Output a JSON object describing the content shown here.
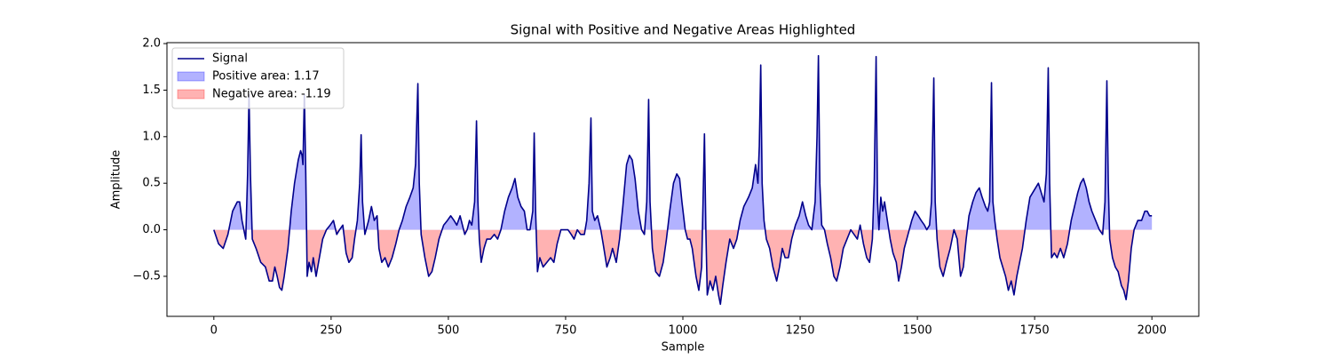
{
  "chart_data": {
    "type": "line",
    "title": "Signal with Positive and Negative Areas Highlighted",
    "xlabel": "Sample",
    "ylabel": "Amplitude",
    "x": [
      0,
      10,
      20,
      30,
      40,
      50,
      55,
      60,
      68,
      72,
      75,
      78,
      82,
      90,
      100,
      110,
      118,
      125,
      130,
      135,
      140,
      145,
      150,
      158,
      165,
      172,
      180,
      185,
      188,
      190,
      193,
      196,
      199,
      203,
      208,
      212,
      218,
      225,
      232,
      240,
      248,
      255,
      262,
      268,
      275,
      282,
      288,
      295,
      300,
      306,
      311,
      314,
      317,
      322,
      330,
      336,
      342,
      348,
      352,
      358,
      365,
      372,
      380,
      388,
      395,
      402,
      410,
      418,
      425,
      430,
      435,
      438,
      442,
      450,
      458,
      465,
      472,
      480,
      490,
      498,
      505,
      512,
      518,
      525,
      530,
      535,
      540,
      545,
      550,
      556,
      560,
      563,
      566,
      570,
      576,
      582,
      590,
      598,
      605,
      612,
      620,
      628,
      636,
      642,
      648,
      655,
      662,
      668,
      674,
      680,
      683,
      686,
      690,
      695,
      702,
      710,
      718,
      725,
      732,
      740,
      748,
      755,
      762,
      768,
      775,
      782,
      790,
      795,
      800,
      804,
      807,
      812,
      818,
      825,
      830,
      838,
      845,
      850,
      858,
      865,
      872,
      880,
      886,
      892,
      898,
      905,
      912,
      918,
      923,
      927,
      930,
      935,
      942,
      950,
      958,
      965,
      972,
      980,
      987,
      993,
      998,
      1005,
      1010,
      1015,
      1020,
      1028,
      1034,
      1040,
      1043,
      1046,
      1049,
      1052,
      1058,
      1064,
      1070,
      1076,
      1080,
      1085,
      1092,
      1100,
      1108,
      1115,
      1122,
      1130,
      1140,
      1148,
      1155,
      1160,
      1163,
      1166,
      1169,
      1173,
      1178,
      1185,
      1192,
      1200,
      1206,
      1212,
      1218,
      1225,
      1232,
      1240,
      1248,
      1255,
      1262,
      1268,
      1275,
      1282,
      1286,
      1289,
      1292,
      1296,
      1302,
      1308,
      1315,
      1322,
      1328,
      1335,
      1342,
      1350,
      1358,
      1365,
      1372,
      1378,
      1385,
      1392,
      1398,
      1404,
      1408,
      1412,
      1415,
      1418,
      1422,
      1426,
      1430,
      1436,
      1442,
      1448,
      1455,
      1460,
      1466,
      1472,
      1480,
      1488,
      1495,
      1502,
      1508,
      1515,
      1520,
      1526,
      1530,
      1535,
      1538,
      1542,
      1548,
      1555,
      1562,
      1570,
      1578,
      1585,
      1592,
      1598,
      1604,
      1610,
      1618,
      1625,
      1632,
      1638,
      1645,
      1650,
      1654,
      1658,
      1661,
      1665,
      1670,
      1676,
      1682,
      1688,
      1694,
      1700,
      1706,
      1712,
      1718,
      1724,
      1732,
      1740,
      1746,
      1752,
      1758,
      1764,
      1770,
      1775,
      1779,
      1782,
      1786,
      1792,
      1798,
      1805,
      1812,
      1820,
      1828,
      1835,
      1842,
      1848,
      1854,
      1860,
      1866,
      1872,
      1880,
      1888,
      1895,
      1900,
      1904,
      1907,
      1910,
      1916,
      1922,
      1928,
      1935,
      1940,
      1945,
      1950,
      1956,
      1962,
      1970,
      1978,
      1985,
      1990,
      1995,
      2000
    ],
    "series": [
      {
        "name": "Signal",
        "color": "#00008b",
        "values": [
          0,
          -0.15,
          -0.2,
          -0.05,
          0.2,
          0.3,
          0.3,
          0.1,
          -0.1,
          0.6,
          1.45,
          0.6,
          -0.1,
          -0.2,
          -0.35,
          -0.4,
          -0.55,
          -0.55,
          -0.4,
          -0.5,
          -0.62,
          -0.65,
          -0.5,
          -0.2,
          0.2,
          0.5,
          0.75,
          0.85,
          0.8,
          0.7,
          1.45,
          0.6,
          -0.5,
          -0.35,
          -0.45,
          -0.3,
          -0.5,
          -0.3,
          -0.1,
          0,
          0.05,
          0.1,
          -0.05,
          0,
          0.05,
          -0.25,
          -0.35,
          -0.3,
          -0.1,
          0.1,
          0.5,
          1.02,
          0.3,
          -0.05,
          0.1,
          0.25,
          0.1,
          0.15,
          -0.2,
          -0.35,
          -0.3,
          -0.4,
          -0.3,
          -0.15,
          0,
          0.1,
          0.25,
          0.35,
          0.45,
          0.7,
          1.57,
          0.5,
          -0.05,
          -0.3,
          -0.5,
          -0.45,
          -0.3,
          -0.1,
          0.05,
          0.1,
          0.15,
          0.1,
          0.05,
          0.15,
          0.05,
          -0.05,
          0,
          0.1,
          0.05,
          0.3,
          1.17,
          0.3,
          -0.1,
          -0.35,
          -0.2,
          -0.1,
          -0.1,
          -0.05,
          -0.1,
          0,
          0.2,
          0.35,
          0.45,
          0.55,
          0.35,
          0.25,
          0.2,
          0,
          0,
          0.2,
          1.04,
          0.2,
          -0.45,
          -0.3,
          -0.4,
          -0.35,
          -0.3,
          -0.35,
          -0.15,
          0,
          0,
          0,
          -0.05,
          -0.1,
          0,
          -0.05,
          -0.05,
          0.1,
          0.5,
          1.2,
          0.2,
          0.1,
          0.15,
          0,
          -0.15,
          -0.4,
          -0.3,
          -0.2,
          -0.35,
          -0.1,
          0.25,
          0.7,
          0.8,
          0.75,
          0.55,
          0.2,
          0,
          -0.05,
          0.3,
          1.4,
          0.3,
          -0.2,
          -0.45,
          -0.5,
          -0.35,
          -0.1,
          0.2,
          0.5,
          0.6,
          0.55,
          0.3,
          0,
          -0.1,
          -0.1,
          -0.2,
          -0.5,
          -0.65,
          -0.4,
          0.3,
          1.03,
          0,
          -0.7,
          -0.55,
          -0.65,
          -0.5,
          -0.7,
          -0.8,
          -0.6,
          -0.35,
          -0.1,
          -0.2,
          -0.1,
          0.1,
          0.25,
          0.35,
          0.45,
          0.7,
          0.5,
          0.9,
          1.77,
          0.5,
          0.1,
          -0.1,
          -0.2,
          -0.4,
          -0.55,
          -0.4,
          -0.2,
          -0.3,
          -0.3,
          -0.1,
          0.05,
          0.15,
          0.3,
          0.15,
          0.05,
          0,
          0.3,
          1,
          1.87,
          0.5,
          0.05,
          0,
          -0.15,
          -0.3,
          -0.5,
          -0.55,
          -0.4,
          -0.2,
          -0.1,
          0,
          -0.05,
          -0.1,
          0.05,
          -0.15,
          -0.3,
          -0.35,
          -0.1,
          0.5,
          1.86,
          0.3,
          0,
          0.35,
          0.2,
          0.3,
          0.1,
          -0.1,
          -0.25,
          -0.35,
          -0.55,
          -0.4,
          -0.2,
          -0.05,
          0.1,
          0.2,
          0.15,
          0.1,
          0.05,
          0,
          0.05,
          0.3,
          1.63,
          0.3,
          -0.1,
          -0.4,
          -0.5,
          -0.35,
          -0.2,
          0,
          -0.1,
          -0.5,
          -0.4,
          -0.1,
          0.15,
          0.3,
          0.4,
          0.45,
          0.35,
          0.25,
          0.2,
          0.3,
          1.58,
          0.3,
          0.1,
          -0.1,
          -0.3,
          -0.4,
          -0.5,
          -0.65,
          -0.55,
          -0.7,
          -0.5,
          -0.35,
          -0.2,
          0.1,
          0.35,
          0.4,
          0.45,
          0.5,
          0.4,
          0.3,
          0.6,
          1.74,
          0.5,
          -0.3,
          -0.25,
          -0.3,
          -0.2,
          -0.3,
          -0.15,
          0.1,
          0.25,
          0.4,
          0.5,
          0.55,
          0.45,
          0.3,
          0.2,
          0.1,
          0,
          -0.05,
          0.3,
          1.6,
          0.5,
          -0.1,
          -0.3,
          -0.4,
          -0.45,
          -0.6,
          -0.65,
          -0.75,
          -0.55,
          -0.2,
          0,
          0.1,
          0.1,
          0.2,
          0.2,
          0.15,
          0.15
        ]
      }
    ],
    "areas": [
      {
        "name": "Positive area: 1.17",
        "color": "#0000ff",
        "alpha": 0.3,
        "side": "positive"
      },
      {
        "name": "Negative area: -1.19",
        "color": "#ff0000",
        "alpha": 0.3,
        "side": "negative"
      }
    ],
    "xlim": [
      -100,
      2100
    ],
    "ylim": [
      -0.93,
      2.01
    ],
    "xticks": [
      0,
      250,
      500,
      750,
      1000,
      1250,
      1500,
      1750,
      2000
    ],
    "yticks": [
      {
        "value": -0.5,
        "label": "−0.5"
      },
      {
        "value": 0,
        "label": "0.0"
      },
      {
        "value": 0.5,
        "label": "0.5"
      },
      {
        "value": 1,
        "label": "1.0"
      },
      {
        "value": 1.5,
        "label": "1.5"
      },
      {
        "value": 2,
        "label": "2.0"
      }
    ],
    "legend": "upper left"
  }
}
